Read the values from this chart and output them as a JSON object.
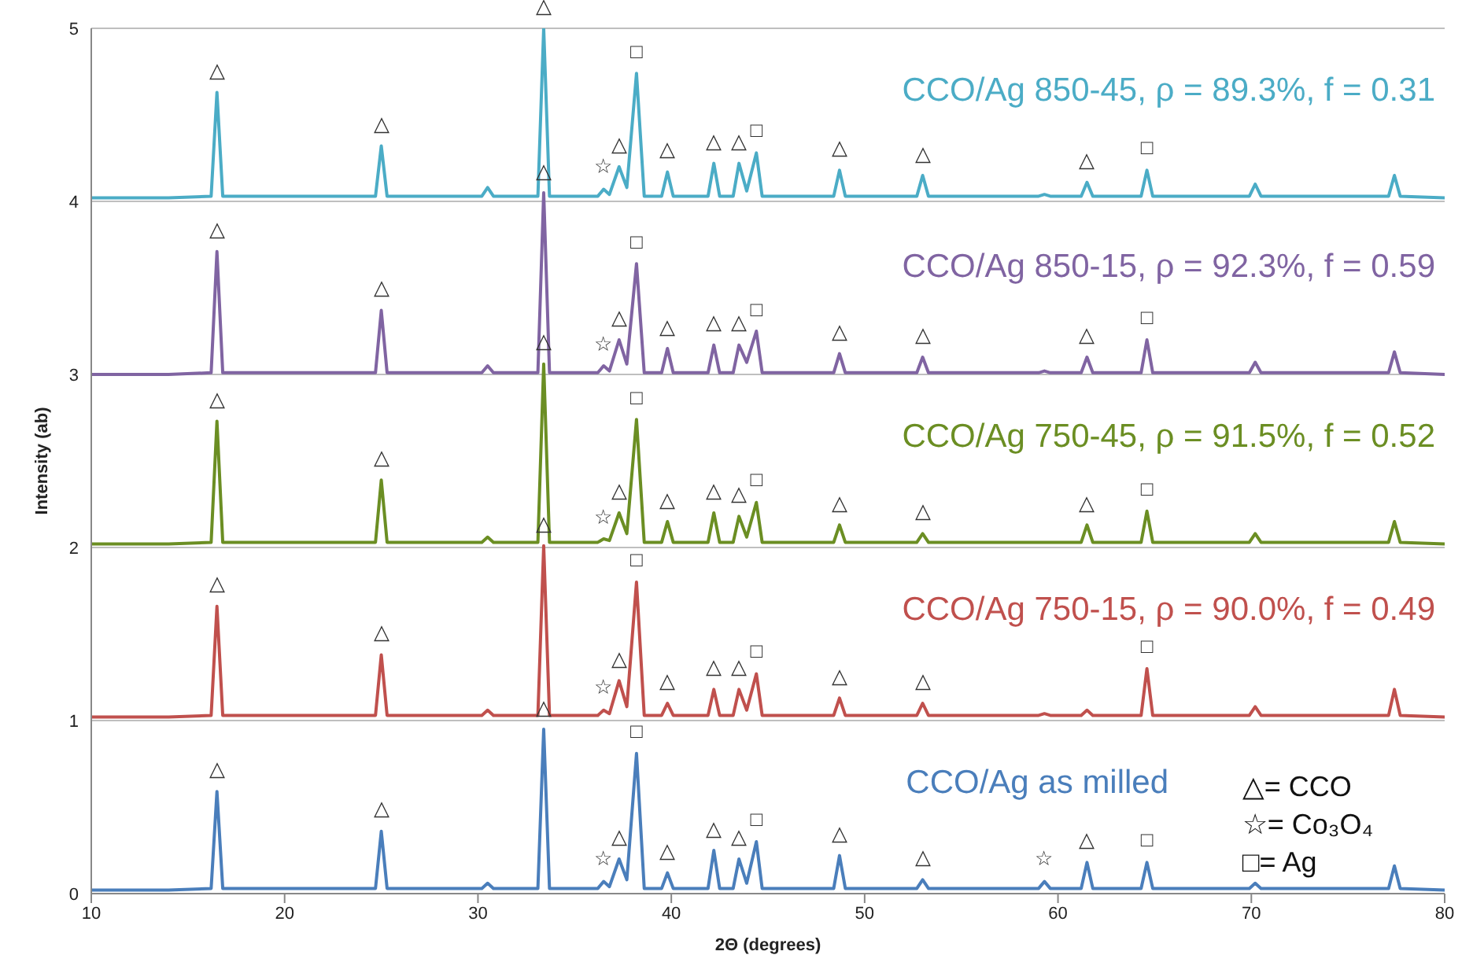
{
  "chart_data": {
    "type": "line",
    "xlabel": "2Θ (degrees)",
    "ylabel": "Intensity (ab)",
    "xlim": [
      10,
      80
    ],
    "xticks": [
      10,
      20,
      30,
      40,
      50,
      60,
      70,
      80
    ],
    "ylim": [
      0,
      5
    ],
    "yticks": [
      0,
      1,
      2,
      3,
      4,
      5
    ],
    "grid": "y",
    "x": [
      10,
      14,
      16.2,
      16.5,
      16.8,
      20,
      24.7,
      25.0,
      25.3,
      28,
      30.2,
      30.5,
      30.8,
      33.1,
      33.4,
      33.7,
      36.2,
      36.5,
      36.8,
      37.3,
      37.7,
      38.2,
      38.6,
      39.5,
      39.8,
      40.1,
      41.9,
      42.2,
      42.5,
      43.2,
      43.5,
      43.9,
      44.4,
      44.7,
      48.4,
      48.7,
      49.0,
      52.7,
      53.0,
      53.3,
      59.0,
      59.3,
      59.6,
      61.2,
      61.5,
      61.8,
      64.3,
      64.6,
      64.9,
      69.9,
      70.2,
      70.5,
      77.1,
      77.4,
      77.7,
      80
    ],
    "series": [
      {
        "name": "CCO/Ag 850-45, ρ = 89.3%, f = 0.31",
        "color": "#4bacc6",
        "values": [
          4.02,
          4.02,
          4.03,
          4.63,
          4.03,
          4.03,
          4.03,
          4.32,
          4.03,
          4.03,
          4.03,
          4.08,
          4.03,
          4.03,
          5,
          4.03,
          4.03,
          4.07,
          4.04,
          4.2,
          4.08,
          4.74,
          4.03,
          4.03,
          4.17,
          4.03,
          4.03,
          4.22,
          4.03,
          4.03,
          4.22,
          4.06,
          4.28,
          4.03,
          4.03,
          4.18,
          4.03,
          4.03,
          4.15,
          4.03,
          4.03,
          4.04,
          4.03,
          4.03,
          4.11,
          4.03,
          4.03,
          4.18,
          4.03,
          4.03,
          4.1,
          4.03,
          4.03,
          4.15,
          4.03,
          4.02
        ]
      },
      {
        "name": "CCO/Ag 850-15, ρ = 92.3%, f = 0.59",
        "color": "#8064a2",
        "values": [
          3,
          3,
          3.01,
          3.71,
          3.01,
          3.01,
          3.01,
          3.37,
          3.01,
          3.01,
          3.01,
          3.05,
          3.01,
          3.01,
          4.05,
          3.01,
          3.01,
          3.05,
          3.02,
          3.2,
          3.06,
          3.64,
          3.01,
          3.01,
          3.15,
          3.01,
          3.01,
          3.17,
          3.01,
          3.01,
          3.17,
          3.07,
          3.25,
          3.01,
          3.01,
          3.12,
          3.01,
          3.01,
          3.1,
          3.01,
          3.01,
          3.02,
          3.01,
          3.01,
          3.1,
          3.01,
          3.01,
          3.2,
          3.01,
          3.01,
          3.07,
          3.01,
          3.01,
          3.13,
          3.01,
          3
        ]
      },
      {
        "name": "CCO/Ag 750-45, ρ = 91.5%, f = 0.52",
        "color": "#6b8e23",
        "values": [
          2.02,
          2.02,
          2.03,
          2.73,
          2.03,
          2.03,
          2.03,
          2.39,
          2.03,
          2.03,
          2.03,
          2.06,
          2.03,
          2.03,
          3.06,
          2.03,
          2.03,
          2.05,
          2.04,
          2.2,
          2.08,
          2.74,
          2.03,
          2.03,
          2.15,
          2.03,
          2.03,
          2.2,
          2.03,
          2.03,
          2.18,
          2.06,
          2.26,
          2.03,
          2.03,
          2.13,
          2.03,
          2.03,
          2.08,
          2.03,
          2.03,
          2.03,
          2.03,
          2.03,
          2.13,
          2.03,
          2.03,
          2.21,
          2.03,
          2.03,
          2.08,
          2.03,
          2.03,
          2.15,
          2.03,
          2.02
        ]
      },
      {
        "name": "CCO/Ag 750-15, ρ = 90.0%, f = 0.49",
        "color": "#c0504d",
        "values": [
          1.02,
          1.02,
          1.03,
          1.66,
          1.03,
          1.03,
          1.03,
          1.38,
          1.03,
          1.03,
          1.03,
          1.06,
          1.03,
          1.03,
          2.01,
          1.03,
          1.03,
          1.06,
          1.04,
          1.23,
          1.08,
          1.8,
          1.03,
          1.03,
          1.1,
          1.03,
          1.03,
          1.18,
          1.03,
          1.03,
          1.18,
          1.06,
          1.27,
          1.03,
          1.03,
          1.13,
          1.03,
          1.03,
          1.1,
          1.03,
          1.03,
          1.04,
          1.03,
          1.03,
          1.06,
          1.03,
          1.03,
          1.3,
          1.03,
          1.03,
          1.08,
          1.03,
          1.03,
          1.18,
          1.03,
          1.02
        ]
      },
      {
        "name": "CCO/Ag as milled",
        "color": "#4a7ebb",
        "values": [
          0.02,
          0.02,
          0.03,
          0.59,
          0.03,
          0.03,
          0.03,
          0.36,
          0.03,
          0.03,
          0.03,
          0.06,
          0.03,
          0.03,
          0.95,
          0.03,
          0.03,
          0.07,
          0.04,
          0.2,
          0.08,
          0.81,
          0.03,
          0.03,
          0.12,
          0.03,
          0.03,
          0.25,
          0.03,
          0.03,
          0.2,
          0.06,
          0.3,
          0.03,
          0.03,
          0.22,
          0.03,
          0.03,
          0.08,
          0.03,
          0.03,
          0.07,
          0.03,
          0.03,
          0.18,
          0.03,
          0.03,
          0.18,
          0.03,
          0.03,
          0.06,
          0.03,
          0.03,
          0.16,
          0.03,
          0.02
        ]
      }
    ],
    "annotations": [
      {
        "text": "△",
        "x": 16.5,
        "y": 4.63
      },
      {
        "text": "△",
        "x": 25,
        "y": 4.32
      },
      {
        "text": "△",
        "x": 33.4,
        "y": 5
      },
      {
        "text": "☆",
        "x": 36.5,
        "y": 4.07
      },
      {
        "text": "△",
        "x": 37.3,
        "y": 4.2
      },
      {
        "text": "□",
        "x": 38.2,
        "y": 4.74
      },
      {
        "text": "△",
        "x": 39.8,
        "y": 4.17
      },
      {
        "text": "△",
        "x": 42.2,
        "y": 4.22
      },
      {
        "text": "△",
        "x": 43.5,
        "y": 4.22
      },
      {
        "text": "□",
        "x": 44.4,
        "y": 4.28
      },
      {
        "text": "△",
        "x": 48.7,
        "y": 4.18
      },
      {
        "text": "△",
        "x": 53,
        "y": 4.15
      },
      {
        "text": "△",
        "x": 61.5,
        "y": 4.11
      },
      {
        "text": "□",
        "x": 64.6,
        "y": 4.18
      },
      {
        "text": "△",
        "x": 16.5,
        "y": 3.71
      },
      {
        "text": "△",
        "x": 25,
        "y": 3.37
      },
      {
        "text": "△",
        "x": 33.4,
        "y": 4.05
      },
      {
        "text": "☆",
        "x": 36.5,
        "y": 3.05
      },
      {
        "text": "△",
        "x": 37.3,
        "y": 3.2
      },
      {
        "text": "□",
        "x": 38.2,
        "y": 3.64
      },
      {
        "text": "△",
        "x": 39.8,
        "y": 3.15
      },
      {
        "text": "△",
        "x": 42.2,
        "y": 3.17
      },
      {
        "text": "△",
        "x": 43.5,
        "y": 3.17
      },
      {
        "text": "□",
        "x": 44.4,
        "y": 3.25
      },
      {
        "text": "△",
        "x": 48.7,
        "y": 3.12
      },
      {
        "text": "△",
        "x": 53,
        "y": 3.1
      },
      {
        "text": "△",
        "x": 61.5,
        "y": 3.1
      },
      {
        "text": "□",
        "x": 64.6,
        "y": 3.2
      },
      {
        "text": "△",
        "x": 16.5,
        "y": 2.73
      },
      {
        "text": "△",
        "x": 25,
        "y": 2.39
      },
      {
        "text": "△",
        "x": 33.4,
        "y": 3.06
      },
      {
        "text": "☆",
        "x": 36.5,
        "y": 2.05
      },
      {
        "text": "△",
        "x": 37.3,
        "y": 2.2
      },
      {
        "text": "□",
        "x": 38.2,
        "y": 2.74
      },
      {
        "text": "△",
        "x": 39.8,
        "y": 2.15
      },
      {
        "text": "△",
        "x": 42.2,
        "y": 2.2
      },
      {
        "text": "△",
        "x": 43.5,
        "y": 2.18
      },
      {
        "text": "□",
        "x": 44.4,
        "y": 2.26
      },
      {
        "text": "△",
        "x": 48.7,
        "y": 2.13
      },
      {
        "text": "△",
        "x": 53,
        "y": 2.08
      },
      {
        "text": "△",
        "x": 61.5,
        "y": 2.13
      },
      {
        "text": "□",
        "x": 64.6,
        "y": 2.21
      },
      {
        "text": "△",
        "x": 16.5,
        "y": 1.66
      },
      {
        "text": "△",
        "x": 25,
        "y": 1.38
      },
      {
        "text": "△",
        "x": 33.4,
        "y": 2.01
      },
      {
        "text": "☆",
        "x": 36.5,
        "y": 1.06
      },
      {
        "text": "△",
        "x": 37.3,
        "y": 1.23
      },
      {
        "text": "□",
        "x": 38.2,
        "y": 1.8
      },
      {
        "text": "△",
        "x": 39.8,
        "y": 1.1
      },
      {
        "text": "△",
        "x": 42.2,
        "y": 1.18
      },
      {
        "text": "△",
        "x": 43.5,
        "y": 1.18
      },
      {
        "text": "□",
        "x": 44.4,
        "y": 1.27
      },
      {
        "text": "△",
        "x": 48.7,
        "y": 1.13
      },
      {
        "text": "△",
        "x": 53,
        "y": 1.1
      },
      {
        "text": "□",
        "x": 64.6,
        "y": 1.3
      },
      {
        "text": "△",
        "x": 16.5,
        "y": 0.59
      },
      {
        "text": "△",
        "x": 25,
        "y": 0.36
      },
      {
        "text": "△",
        "x": 33.4,
        "y": 0.95
      },
      {
        "text": "☆",
        "x": 36.5,
        "y": 0.07
      },
      {
        "text": "△",
        "x": 37.3,
        "y": 0.2
      },
      {
        "text": "□",
        "x": 38.2,
        "y": 0.81
      },
      {
        "text": "△",
        "x": 39.8,
        "y": 0.12
      },
      {
        "text": "△",
        "x": 42.2,
        "y": 0.25
      },
      {
        "text": "△",
        "x": 43.5,
        "y": 0.2
      },
      {
        "text": "□",
        "x": 44.4,
        "y": 0.3
      },
      {
        "text": "△",
        "x": 48.7,
        "y": 0.22
      },
      {
        "text": "△",
        "x": 53,
        "y": 0.08
      },
      {
        "text": "☆",
        "x": 59.3,
        "y": 0.07
      },
      {
        "text": "△",
        "x": 61.5,
        "y": 0.18
      },
      {
        "text": "□",
        "x": 64.6,
        "y": 0.18
      },
      "△= CCO",
      "☆= Co₃O₄",
      "□= Ag"
    ]
  }
}
